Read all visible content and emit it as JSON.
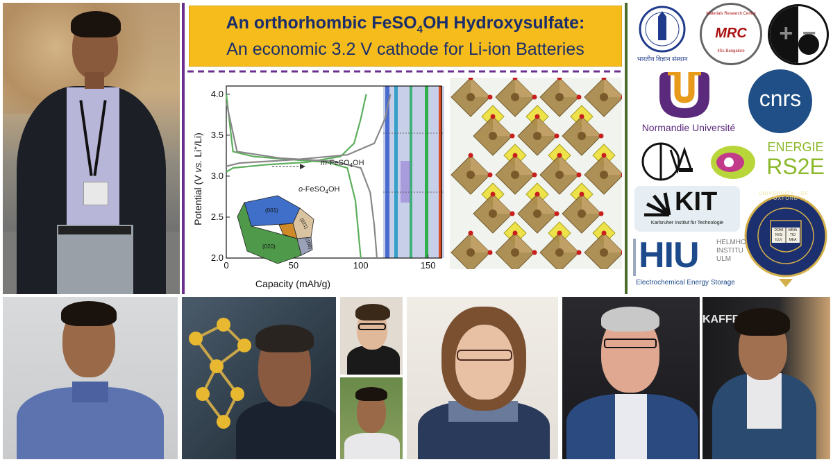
{
  "title": {
    "line1_prefix": "An orthorhombic FeSO",
    "line1_sub": "4",
    "line1_suffix": "OH Hydroxysulfate:",
    "line2": "An economic 3.2 V cathode for Li-ion Batteries"
  },
  "chart_data": {
    "type": "line",
    "xlabel": "Capacity (mAh/g)",
    "ylabel_prefix": "Potential (V ",
    "ylabel_vs": "vs.",
    "ylabel_li": " Li",
    "ylabel_plus": "+",
    "ylabel_suffix": "/Li)",
    "xlim": [
      0,
      160
    ],
    "ylim": [
      2.0,
      4.1
    ],
    "x_ticks": [
      "0",
      "50",
      "100",
      "150"
    ],
    "y_ticks": [
      "2.0",
      "2.5",
      "3.0",
      "3.5",
      "4.0"
    ],
    "annotations": [
      {
        "prefix": "m",
        "text": "-FeSO",
        "sub": "4",
        "suffix": "OH"
      },
      {
        "prefix": "o",
        "text": "-FeSO",
        "sub": "4",
        "suffix": "OH"
      }
    ],
    "crystal_facets": [
      "(001)",
      "(021)",
      "(100)",
      "(020)"
    ],
    "series": [
      {
        "color": "#5cae5c",
        "x": [
          0,
          5,
          20,
          50,
          75,
          90,
          96,
          100
        ],
        "y": [
          4.0,
          3.3,
          3.24,
          3.2,
          3.17,
          3.1,
          2.7,
          2.0
        ]
      },
      {
        "color": "#5cae5c",
        "x": [
          0,
          5,
          30,
          60,
          85,
          95,
          100,
          104
        ],
        "y": [
          3.05,
          3.1,
          3.14,
          3.17,
          3.24,
          3.4,
          3.7,
          4.0
        ]
      },
      {
        "color": "#888888",
        "x": [
          0,
          8,
          40,
          80,
          100,
          107,
          110,
          112
        ],
        "y": [
          3.9,
          3.3,
          3.22,
          3.18,
          3.1,
          2.8,
          2.4,
          2.0
        ]
      },
      {
        "color": "#888888",
        "x": [
          0,
          10,
          50,
          90,
          110,
          118,
          122
        ],
        "y": [
          3.12,
          3.16,
          3.2,
          3.26,
          3.4,
          3.7,
          4.0
        ]
      }
    ]
  },
  "logos": {
    "iisc": "भारतीय विज्ञान संस्थान",
    "mrc_arc": "Materials Research Centre",
    "mrc_mark": "MRC",
    "mrc_bottom": "IISc Bangalore",
    "plus_minus": "+ −",
    "normandie": "Normandie Université",
    "cnrs": "cnrs",
    "rs2e_1": "ENERGIE",
    "rs2e_2": "RS2E",
    "kit": "KIT",
    "kit_sub": "Karlsruher Institut für Technologie",
    "hiu": "HIU",
    "hiu_side": [
      "HELMHO",
      "INSTITU",
      "ULM"
    ],
    "hiu_sub": "Electrochemical Energy Storage",
    "oxford_ring": "UNIVERSITY · OF · OXFORD",
    "oxford_book_left": [
      "DOMI",
      "NVS",
      "ILLV"
    ],
    "oxford_book_right": [
      "MINA",
      "TIO",
      "MEA"
    ]
  },
  "photo_text": {
    "kaffee": "KAFFEE:"
  },
  "colors": {
    "title_bg": "#f5bc1c",
    "title_text": "#1b2e6b",
    "divider_purple": "#6a2e8f",
    "divider_green": "#4b6b2a"
  }
}
